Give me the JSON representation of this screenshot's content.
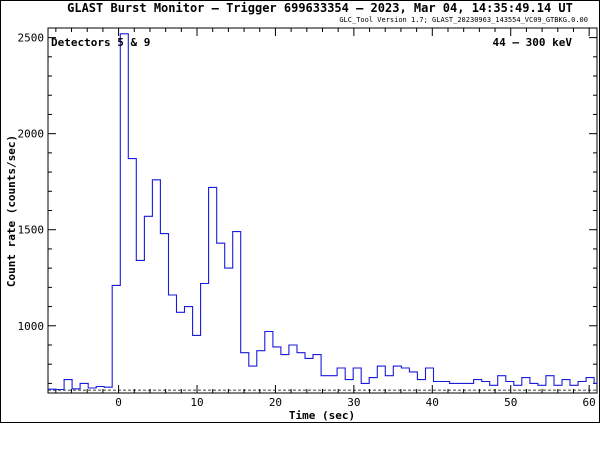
{
  "chart_data": {
    "type": "line",
    "title": "GLAST Burst Monitor  –  Trigger 699633354  –  2023, Mar 04, 14:35:49.14 UT",
    "subtitle": "GLC_Tool Version 1.7; GLAST_20230963_143554_VC09_GTBKG.0.00",
    "xlabel": "Time (sec)",
    "ylabel": "Count rate (counts/sec)",
    "xlim": [
      -9,
      61
    ],
    "ylim": [
      650,
      2550
    ],
    "xticks": [
      0,
      10,
      20,
      30,
      40,
      50,
      60
    ],
    "yticks": [
      1000,
      1500,
      2000,
      2500
    ],
    "annotation_left": "Detectors 5 & 9",
    "annotation_right": "44 – 300 keV",
    "background_level": 665,
    "bin_width": 1.024,
    "step_start": -9,
    "series_values": [
      670,
      668,
      720,
      672,
      700,
      676,
      684,
      680,
      1210,
      2520,
      1870,
      1340,
      1570,
      1760,
      1480,
      1160,
      1070,
      1100,
      950,
      1220,
      1720,
      1430,
      1300,
      1490,
      860,
      790,
      870,
      970,
      890,
      850,
      900,
      860,
      830,
      850,
      740,
      740,
      780,
      720,
      780,
      700,
      730,
      790,
      740,
      790,
      780,
      760,
      720,
      780,
      710,
      710,
      700,
      700,
      700,
      720,
      710,
      690,
      740,
      710,
      690,
      730,
      700,
      690,
      740,
      690,
      720,
      690,
      710,
      730,
      700
    ]
  }
}
